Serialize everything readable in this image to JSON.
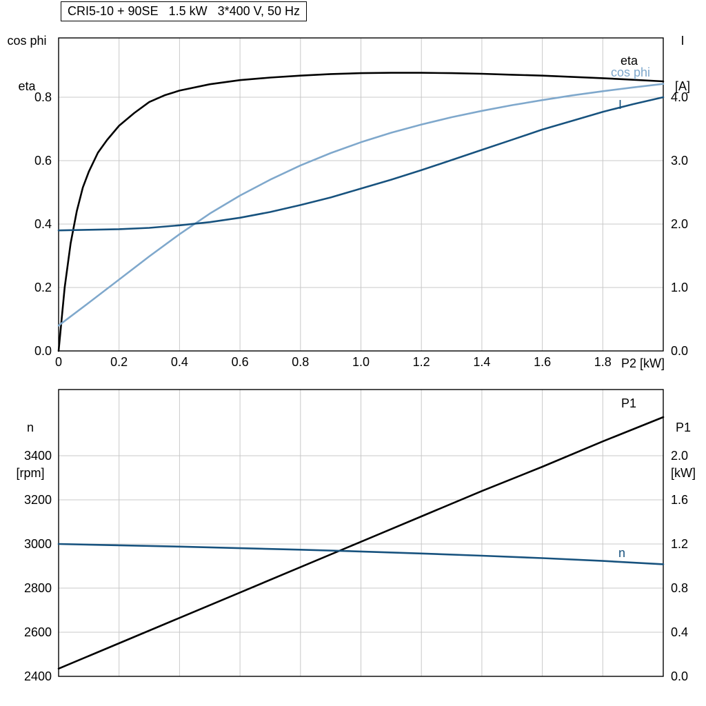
{
  "colors": {
    "black": "#000000",
    "dark_blue": "#17527e",
    "light_blue": "#7fa8cc",
    "grid": "#c8c8c8",
    "axis": "#000000"
  },
  "title_box": {
    "text": "CRI5-10 + 90SE   1.5 kW   3*400 V, 50 Hz"
  },
  "axis_labels": {
    "top_left": [
      "cos phi",
      "eta"
    ],
    "top_right": [
      "I",
      "[A]"
    ],
    "bottom_left": [
      "n",
      "[rpm]"
    ],
    "bottom_right": [
      "P1",
      "[kW]"
    ],
    "x_end": "P2 [kW]"
  },
  "curve_labels": {
    "eta": "eta",
    "cos_phi": "cos phi",
    "current": "I",
    "p1": "P1",
    "n": "n"
  },
  "chart_data": [
    {
      "type": "line",
      "title": "CRI5-10 + 90SE   1.5 kW   3*400 V, 50 Hz",
      "xlabel": "P2 [kW]",
      "ylabel_left": "cos phi / eta",
      "ylabel_right": "I [A]",
      "xlim": [
        0,
        2.0
      ],
      "ylim_left": [
        0,
        0.987
      ],
      "ylim_right": [
        0,
        4.935
      ],
      "grid": true,
      "xtick_vals": [
        0,
        0.2,
        0.4,
        0.6,
        0.8,
        1.0,
        1.2,
        1.4,
        1.6,
        1.8
      ],
      "xtick_labels": [
        "0",
        "0.2",
        "0.4",
        "0.6",
        "0.8",
        "1.0",
        "1.2",
        "1.4",
        "1.6",
        "1.8"
      ],
      "ytick_left_vals": [
        0.0,
        0.2,
        0.4,
        0.6,
        0.8
      ],
      "ytick_left_labels": [
        "0.0",
        "0.2",
        "0.4",
        "0.6",
        "0.8"
      ],
      "ytick_right_vals": [
        0.0,
        1.0,
        2.0,
        3.0,
        4.0
      ],
      "ytick_right_labels": [
        "0.0",
        "1.0",
        "2.0",
        "3.0",
        "4.0"
      ],
      "series": [
        {
          "name": "eta",
          "axis": "left",
          "color": "black",
          "points": [
            [
              0,
              0
            ],
            [
              0.02,
              0.2
            ],
            [
              0.04,
              0.34
            ],
            [
              0.06,
              0.44
            ],
            [
              0.08,
              0.515
            ],
            [
              0.1,
              0.565
            ],
            [
              0.13,
              0.625
            ],
            [
              0.16,
              0.665
            ],
            [
              0.2,
              0.71
            ],
            [
              0.25,
              0.75
            ],
            [
              0.3,
              0.785
            ],
            [
              0.35,
              0.806
            ],
            [
              0.4,
              0.821
            ],
            [
              0.5,
              0.841
            ],
            [
              0.6,
              0.854
            ],
            [
              0.7,
              0.862
            ],
            [
              0.8,
              0.868
            ],
            [
              0.9,
              0.873
            ],
            [
              1.0,
              0.876
            ],
            [
              1.1,
              0.877
            ],
            [
              1.2,
              0.877
            ],
            [
              1.3,
              0.876
            ],
            [
              1.4,
              0.874
            ],
            [
              1.5,
              0.871
            ],
            [
              1.6,
              0.868
            ],
            [
              1.7,
              0.864
            ],
            [
              1.8,
              0.86
            ],
            [
              1.9,
              0.855
            ],
            [
              2.0,
              0.85
            ]
          ]
        },
        {
          "name": "cos phi",
          "axis": "left",
          "color": "light_blue",
          "points": [
            [
              0,
              0.08
            ],
            [
              0.1,
              0.152
            ],
            [
              0.2,
              0.225
            ],
            [
              0.3,
              0.298
            ],
            [
              0.4,
              0.368
            ],
            [
              0.5,
              0.433
            ],
            [
              0.6,
              0.49
            ],
            [
              0.7,
              0.54
            ],
            [
              0.8,
              0.585
            ],
            [
              0.9,
              0.624
            ],
            [
              1.0,
              0.658
            ],
            [
              1.1,
              0.688
            ],
            [
              1.2,
              0.714
            ],
            [
              1.3,
              0.737
            ],
            [
              1.4,
              0.757
            ],
            [
              1.5,
              0.775
            ],
            [
              1.6,
              0.791
            ],
            [
              1.7,
              0.806
            ],
            [
              1.8,
              0.819
            ],
            [
              1.9,
              0.831
            ],
            [
              2.0,
              0.842
            ]
          ]
        },
        {
          "name": "I",
          "axis": "right",
          "color": "dark_blue",
          "points": [
            [
              0,
              1.9
            ],
            [
              0.1,
              1.91
            ],
            [
              0.2,
              1.92
            ],
            [
              0.3,
              1.94
            ],
            [
              0.4,
              1.98
            ],
            [
              0.5,
              2.03
            ],
            [
              0.6,
              2.1
            ],
            [
              0.7,
              2.19
            ],
            [
              0.8,
              2.3
            ],
            [
              0.9,
              2.42
            ],
            [
              1.0,
              2.56
            ],
            [
              1.1,
              2.7
            ],
            [
              1.2,
              2.85
            ],
            [
              1.3,
              3.01
            ],
            [
              1.4,
              3.17
            ],
            [
              1.5,
              3.33
            ],
            [
              1.6,
              3.49
            ],
            [
              1.7,
              3.63
            ],
            [
              1.8,
              3.77
            ],
            [
              1.9,
              3.89
            ],
            [
              2.0,
              4.0
            ]
          ]
        }
      ]
    },
    {
      "type": "line",
      "title": "",
      "xlabel": "",
      "ylabel_left": "n [rpm]",
      "ylabel_right": "P1 [kW]",
      "xlim": [
        0,
        2.0
      ],
      "ylim_left": [
        2400,
        3700
      ],
      "ylim_right": [
        0,
        2.6
      ],
      "grid": true,
      "xtick_vals": [
        0,
        0.2,
        0.4,
        0.6,
        0.8,
        1.0,
        1.2,
        1.4,
        1.6,
        1.8
      ],
      "xtick_labels": [],
      "ytick_left_vals": [
        2400,
        2600,
        2800,
        3000,
        3200,
        3400
      ],
      "ytick_left_labels": [
        "2400",
        "2600",
        "2800",
        "3000",
        "3200",
        "3400"
      ],
      "ytick_right_vals": [
        0.0,
        0.4,
        0.8,
        1.2,
        1.6,
        2.0
      ],
      "ytick_right_labels": [
        "0.0",
        "0.4",
        "0.8",
        "1.2",
        "1.6",
        "2.0"
      ],
      "series": [
        {
          "name": "P1",
          "axis": "right",
          "color": "black",
          "points": [
            [
              0,
              0.07
            ],
            [
              0.2,
              0.3
            ],
            [
              0.4,
              0.53
            ],
            [
              0.6,
              0.76
            ],
            [
              0.8,
              0.99
            ],
            [
              1.0,
              1.22
            ],
            [
              1.2,
              1.45
            ],
            [
              1.4,
              1.68
            ],
            [
              1.6,
              1.9
            ],
            [
              1.8,
              2.13
            ],
            [
              2.0,
              2.35
            ]
          ]
        },
        {
          "name": "n",
          "axis": "left",
          "color": "dark_blue",
          "points": [
            [
              0,
              3000
            ],
            [
              0.2,
              2994
            ],
            [
              0.4,
              2988
            ],
            [
              0.6,
              2981
            ],
            [
              0.8,
              2974
            ],
            [
              1.0,
              2966
            ],
            [
              1.2,
              2957
            ],
            [
              1.4,
              2947
            ],
            [
              1.6,
              2936
            ],
            [
              1.8,
              2923
            ],
            [
              2.0,
              2908
            ]
          ]
        }
      ]
    }
  ]
}
